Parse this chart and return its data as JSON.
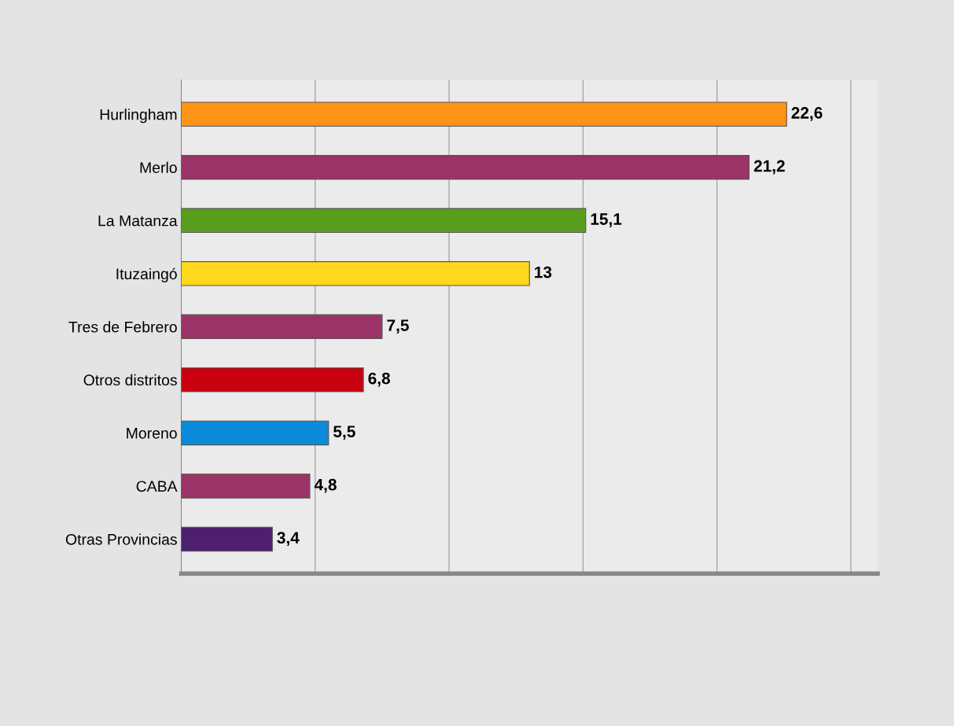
{
  "chart_data": {
    "type": "bar",
    "orientation": "horizontal",
    "categories": [
      "Hurlingham",
      "Merlo",
      "La Matanza",
      "Ituzaingó",
      "Tres de Febrero",
      "Otros distritos",
      "Moreno",
      "CABA",
      "Otras Provincias"
    ],
    "values": [
      22.6,
      21.2,
      15.1,
      13,
      7.5,
      6.8,
      5.5,
      4.8,
      3.4
    ],
    "value_labels": [
      "22,6",
      "21,2",
      "15,1",
      "13",
      "7,5",
      "6,8",
      "5,5",
      "4,8",
      "3,4"
    ],
    "colors": [
      "#ff9315",
      "#9b3366",
      "#5a9e1e",
      "#ffd81c",
      "#9b3366",
      "#c8000f",
      "#0a8ad8",
      "#9b3366",
      "#4e1f6e"
    ],
    "xlim": [
      0,
      26
    ],
    "xticks": [
      {
        "value": 0,
        "label": null
      },
      {
        "value": 5,
        "label": null
      },
      {
        "value": 10,
        "label": null
      },
      {
        "value": 15,
        "label": null
      },
      {
        "value": 20,
        "label": null
      },
      {
        "value": 25,
        "label": null
      }
    ],
    "grid": "x",
    "tick_labels": "y"
  }
}
